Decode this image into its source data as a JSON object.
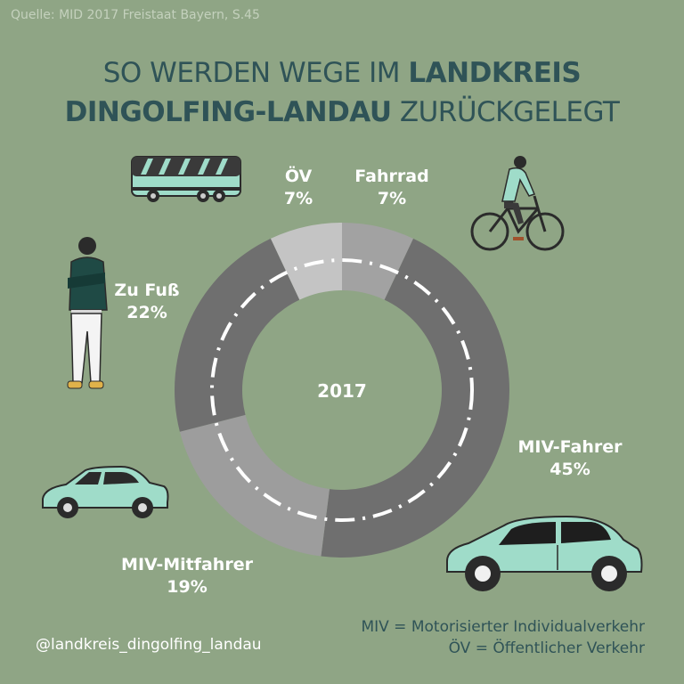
{
  "source": "Quelle: MID 2017 Freistaat Bayern, S.45",
  "title": {
    "line1_regular": "SO WERDEN WEGE IM ",
    "line1_bold": "LANDKREIS",
    "line2_bold": "DINGOLFING-LANDAU",
    "line2_regular": " ZURÜCKGELEGT"
  },
  "chart_data": {
    "type": "pie",
    "center_label": "2017",
    "slices": [
      {
        "label": "Fahrrad",
        "value_label": "7%",
        "value": 7,
        "color": "#a2a2a2"
      },
      {
        "label": "MIV-Fahrer",
        "value_label": "45%",
        "value": 45,
        "color": "#6f6f6f"
      },
      {
        "label": "MIV-Mitfahrer",
        "value_label": "19%",
        "value": 19,
        "color": "#9d9d9d"
      },
      {
        "label": "Zu Fuß",
        "value_label": "22%",
        "value": 22,
        "color": "#6f6f6f"
      },
      {
        "label": "ÖV",
        "value_label": "7%",
        "value": 7,
        "color": "#c4c4c4"
      }
    ]
  },
  "legend": {
    "miv": "MIV = Motorisierter Individualverkehr",
    "oev": "ÖV = Öffentlicher Verkehr"
  },
  "handle": "@landkreis_dingolfing_landau",
  "colors": {
    "background": "#8fa585",
    "title": "#2f5357",
    "vehicle_mint": "#9fdcc9"
  },
  "icons": [
    "bus-icon",
    "cyclist-icon",
    "pedestrian-icon",
    "small-car-icon",
    "large-car-icon"
  ]
}
